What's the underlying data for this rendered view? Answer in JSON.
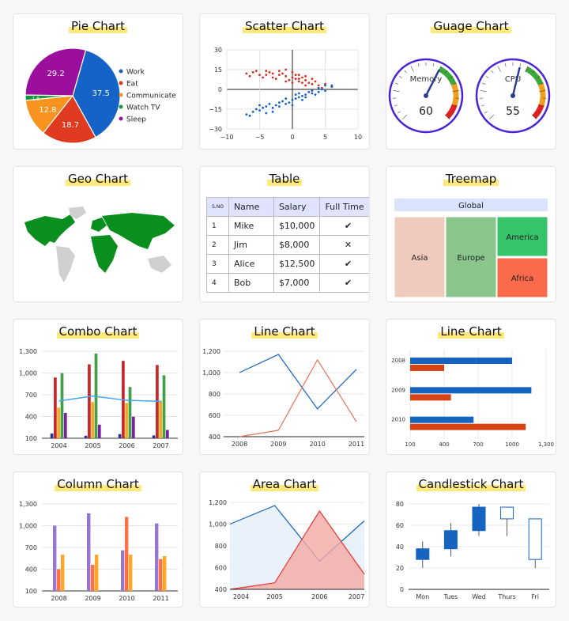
{
  "chart_data": [
    {
      "type": "pie",
      "title": "Pie Chart",
      "slices": [
        {
          "name": "Work",
          "value": 37.5,
          "color": "#1663c7"
        },
        {
          "name": "Eat",
          "value": 18.7,
          "color": "#e03a20"
        },
        {
          "name": "Communicate",
          "value": 12.8,
          "color": "#f7931e"
        },
        {
          "name": "Watch TV",
          "value": 1.8,
          "label": "1.8",
          "color": "#129a3a"
        },
        {
          "name": "Sleep",
          "value": 29.2,
          "color": "#9c0f9c"
        }
      ],
      "legend_position": "right"
    },
    {
      "type": "scatter",
      "title": "Scatter Chart",
      "xlim": [
        -10,
        10
      ],
      "ylim": [
        -30,
        30
      ],
      "xticks": [
        "−10",
        "−5",
        "0",
        "5",
        "10"
      ],
      "yticks": [
        "30",
        "15",
        "0",
        "−15",
        "−30"
      ],
      "series": [
        {
          "color": "#d9301e",
          "points": [
            [
              -7,
              12
            ],
            [
              -6,
              13
            ],
            [
              -5,
              11
            ],
            [
              -4,
              14
            ],
            [
              -3,
              12
            ],
            [
              -2,
              11
            ],
            [
              -1,
              10
            ],
            [
              0,
              9
            ],
            [
              0.5,
              8
            ],
            [
              1,
              6
            ],
            [
              1.5,
              5
            ],
            [
              2,
              7
            ],
            [
              3,
              4
            ],
            [
              4,
              3
            ],
            [
              5,
              4
            ],
            [
              6,
              2
            ],
            [
              -6.5,
              10
            ],
            [
              -5.5,
              14
            ],
            [
              -4.5,
              9
            ],
            [
              -3.5,
              13
            ],
            [
              -2.5,
              8
            ],
            [
              -1.5,
              12
            ],
            [
              -0.5,
              7
            ],
            [
              0.5,
              11
            ],
            [
              1.5,
              9
            ],
            [
              2.5,
              5
            ],
            [
              3.5,
              6
            ],
            [
              4.5,
              1
            ],
            [
              -2,
              14
            ],
            [
              -1,
              15
            ],
            [
              0,
              13
            ],
            [
              1,
              11
            ],
            [
              2,
              3
            ],
            [
              3,
              8
            ],
            [
              -3,
              9
            ],
            [
              -4,
              11
            ],
            [
              0,
              5
            ],
            [
              1,
              8
            ],
            [
              2,
              10
            ],
            [
              -1,
              6
            ]
          ]
        },
        {
          "color": "#1663c7",
          "points": [
            [
              -7,
              -19
            ],
            [
              -6,
              -17
            ],
            [
              -5,
              -16
            ],
            [
              -4,
              -13
            ],
            [
              -3,
              -14
            ],
            [
              -2,
              -10
            ],
            [
              -1,
              -11
            ],
            [
              0,
              -8
            ],
            [
              0.5,
              -7
            ],
            [
              1,
              -6
            ],
            [
              1.5,
              -5
            ],
            [
              2,
              -4
            ],
            [
              3,
              -3
            ],
            [
              4,
              -2
            ],
            [
              5,
              -1
            ],
            [
              6,
              2
            ],
            [
              -6.5,
              -20
            ],
            [
              -5.5,
              -15
            ],
            [
              -4.5,
              -14
            ],
            [
              -3.5,
              -11
            ],
            [
              -2.5,
              -12
            ],
            [
              -1.5,
              -9
            ],
            [
              -0.5,
              -10
            ],
            [
              0.5,
              -4
            ],
            [
              1.5,
              -8
            ],
            [
              2.5,
              -2
            ],
            [
              3.5,
              -4
            ],
            [
              4.5,
              0
            ],
            [
              -4,
              -18
            ],
            [
              -3,
              -17
            ],
            [
              -2,
              -13
            ],
            [
              -1,
              -7
            ],
            [
              0,
              -12
            ],
            [
              1,
              -3
            ],
            [
              2,
              -6
            ],
            [
              3,
              -1
            ],
            [
              4,
              1
            ],
            [
              5,
              3
            ],
            [
              -5,
              -12
            ],
            [
              6,
              3
            ]
          ]
        }
      ]
    },
    {
      "type": "gauge",
      "title": "Guage Chart",
      "gauges": [
        {
          "label": "Memory",
          "value": 60
        },
        {
          "label": "CPU",
          "value": 55
        }
      ],
      "range": [
        0,
        100
      ]
    },
    {
      "type": "geo",
      "title": "Geo Chart"
    },
    {
      "type": "table",
      "title": "Table",
      "columns": [
        "S.NO",
        "Name",
        "Salary",
        "Full Time"
      ],
      "rows": [
        [
          "1",
          "Mike",
          "$10,000",
          "✔"
        ],
        [
          "2",
          "Jim",
          "$8,000",
          "✕"
        ],
        [
          "3",
          "Alice",
          "$12,500",
          "✔"
        ],
        [
          "4",
          "Bob",
          "$7,000",
          "✔"
        ]
      ]
    },
    {
      "type": "treemap",
      "title": "Treemap",
      "root": "Global",
      "nodes": [
        {
          "name": "Asia",
          "color": "#efcbbe"
        },
        {
          "name": "Europe",
          "color": "#8ac68c"
        },
        {
          "name": "America",
          "color": "#35c46a"
        },
        {
          "name": "Africa",
          "color": "#fb6a4a"
        }
      ]
    },
    {
      "type": "bar",
      "title": "Combo Chart",
      "categories": [
        "2004",
        "2005",
        "2006",
        "2007"
      ],
      "yticks": [
        "1,300",
        "1,000",
        "700",
        "400",
        "100"
      ],
      "ylim": [
        100,
        1300
      ],
      "series": [
        {
          "color": "#283593",
          "values": [
            165,
            135,
            157,
            139
          ]
        },
        {
          "color": "#c62828",
          "values": [
            938,
            1120,
            1167,
            1110
          ]
        },
        {
          "color": "#f9a825",
          "values": [
            522,
            599,
            587,
            615
          ]
        },
        {
          "color": "#43a047",
          "values": [
            998,
            1268,
            807,
            968
          ]
        },
        {
          "color": "#7b1fa2",
          "values": [
            450,
            288,
            397,
            215
          ]
        }
      ],
      "line": {
        "color": "#42a5f5",
        "values": [
          614,
          682,
          623,
          609
        ]
      }
    },
    {
      "type": "line",
      "title": "Line Chart",
      "categories": [
        "2008",
        "2009",
        "2010",
        "2011"
      ],
      "yticks": [
        "1,200",
        "1,000",
        "800",
        "600",
        "400"
      ],
      "ylim": [
        400,
        1200
      ],
      "series": [
        {
          "color": "#1565c0",
          "values": [
            1000,
            1170,
            660,
            1030
          ]
        },
        {
          "color": "#e57359",
          "values": [
            400,
            460,
            1120,
            540
          ]
        }
      ]
    },
    {
      "type": "bar",
      "title": "Line Chart",
      "orientation": "horizontal",
      "categories": [
        "2008",
        "2009",
        "2010"
      ],
      "xticks": [
        "100",
        "400",
        "700",
        "1000",
        "1,300"
      ],
      "xlim": [
        100,
        1300
      ],
      "series": [
        {
          "color": "#1565c0",
          "values": [
            1000,
            1170,
            660
          ]
        },
        {
          "color": "#d84315",
          "values": [
            400,
            460,
            1120
          ]
        }
      ]
    },
    {
      "type": "bar",
      "title": "Column Chart",
      "categories": [
        "2008",
        "2009",
        "2010",
        "2011"
      ],
      "yticks": [
        "1,300",
        "1,000",
        "700",
        "400",
        "100"
      ],
      "ylim": [
        100,
        1300
      ],
      "series": [
        {
          "color": "#9575cd",
          "values": [
            1000,
            1170,
            660,
            1030
          ]
        },
        {
          "color": "#ff7043",
          "values": [
            400,
            460,
            1120,
            540
          ]
        },
        {
          "color": "#ffa726",
          "values": [
            600,
            600,
            600,
            580
          ]
        }
      ]
    },
    {
      "type": "area",
      "title": "Area Chart",
      "categories": [
        "2004",
        "2005",
        "2006",
        "2007"
      ],
      "yticks": [
        "1,200",
        "1,000",
        "800",
        "600",
        "400"
      ],
      "ylim": [
        400,
        1200
      ],
      "series": [
        {
          "color": "#1565c0",
          "fill": "#e3edfa",
          "values": [
            1000,
            1170,
            660,
            1030
          ]
        },
        {
          "color": "#e53935",
          "fill": "#f4aaa4",
          "values": [
            400,
            460,
            1120,
            540
          ]
        }
      ]
    },
    {
      "type": "candlestick",
      "title": "Candlestick Chart",
      "categories": [
        "Mon",
        "Tues",
        "Wed",
        "Thurs",
        "Fri"
      ],
      "yticks": [
        "80",
        "60",
        "40",
        "20",
        "0"
      ],
      "ylim": [
        0,
        80
      ],
      "candles": [
        {
          "low": 20,
          "open": 28,
          "close": 38,
          "high": 45
        },
        {
          "low": 31,
          "open": 38,
          "close": 55,
          "high": 62
        },
        {
          "low": 50,
          "open": 55,
          "close": 77,
          "high": 80
        },
        {
          "low": 50,
          "open": 77,
          "close": 66,
          "high": 77
        },
        {
          "low": 20,
          "open": 66,
          "close": 28,
          "high": 66
        }
      ]
    }
  ]
}
